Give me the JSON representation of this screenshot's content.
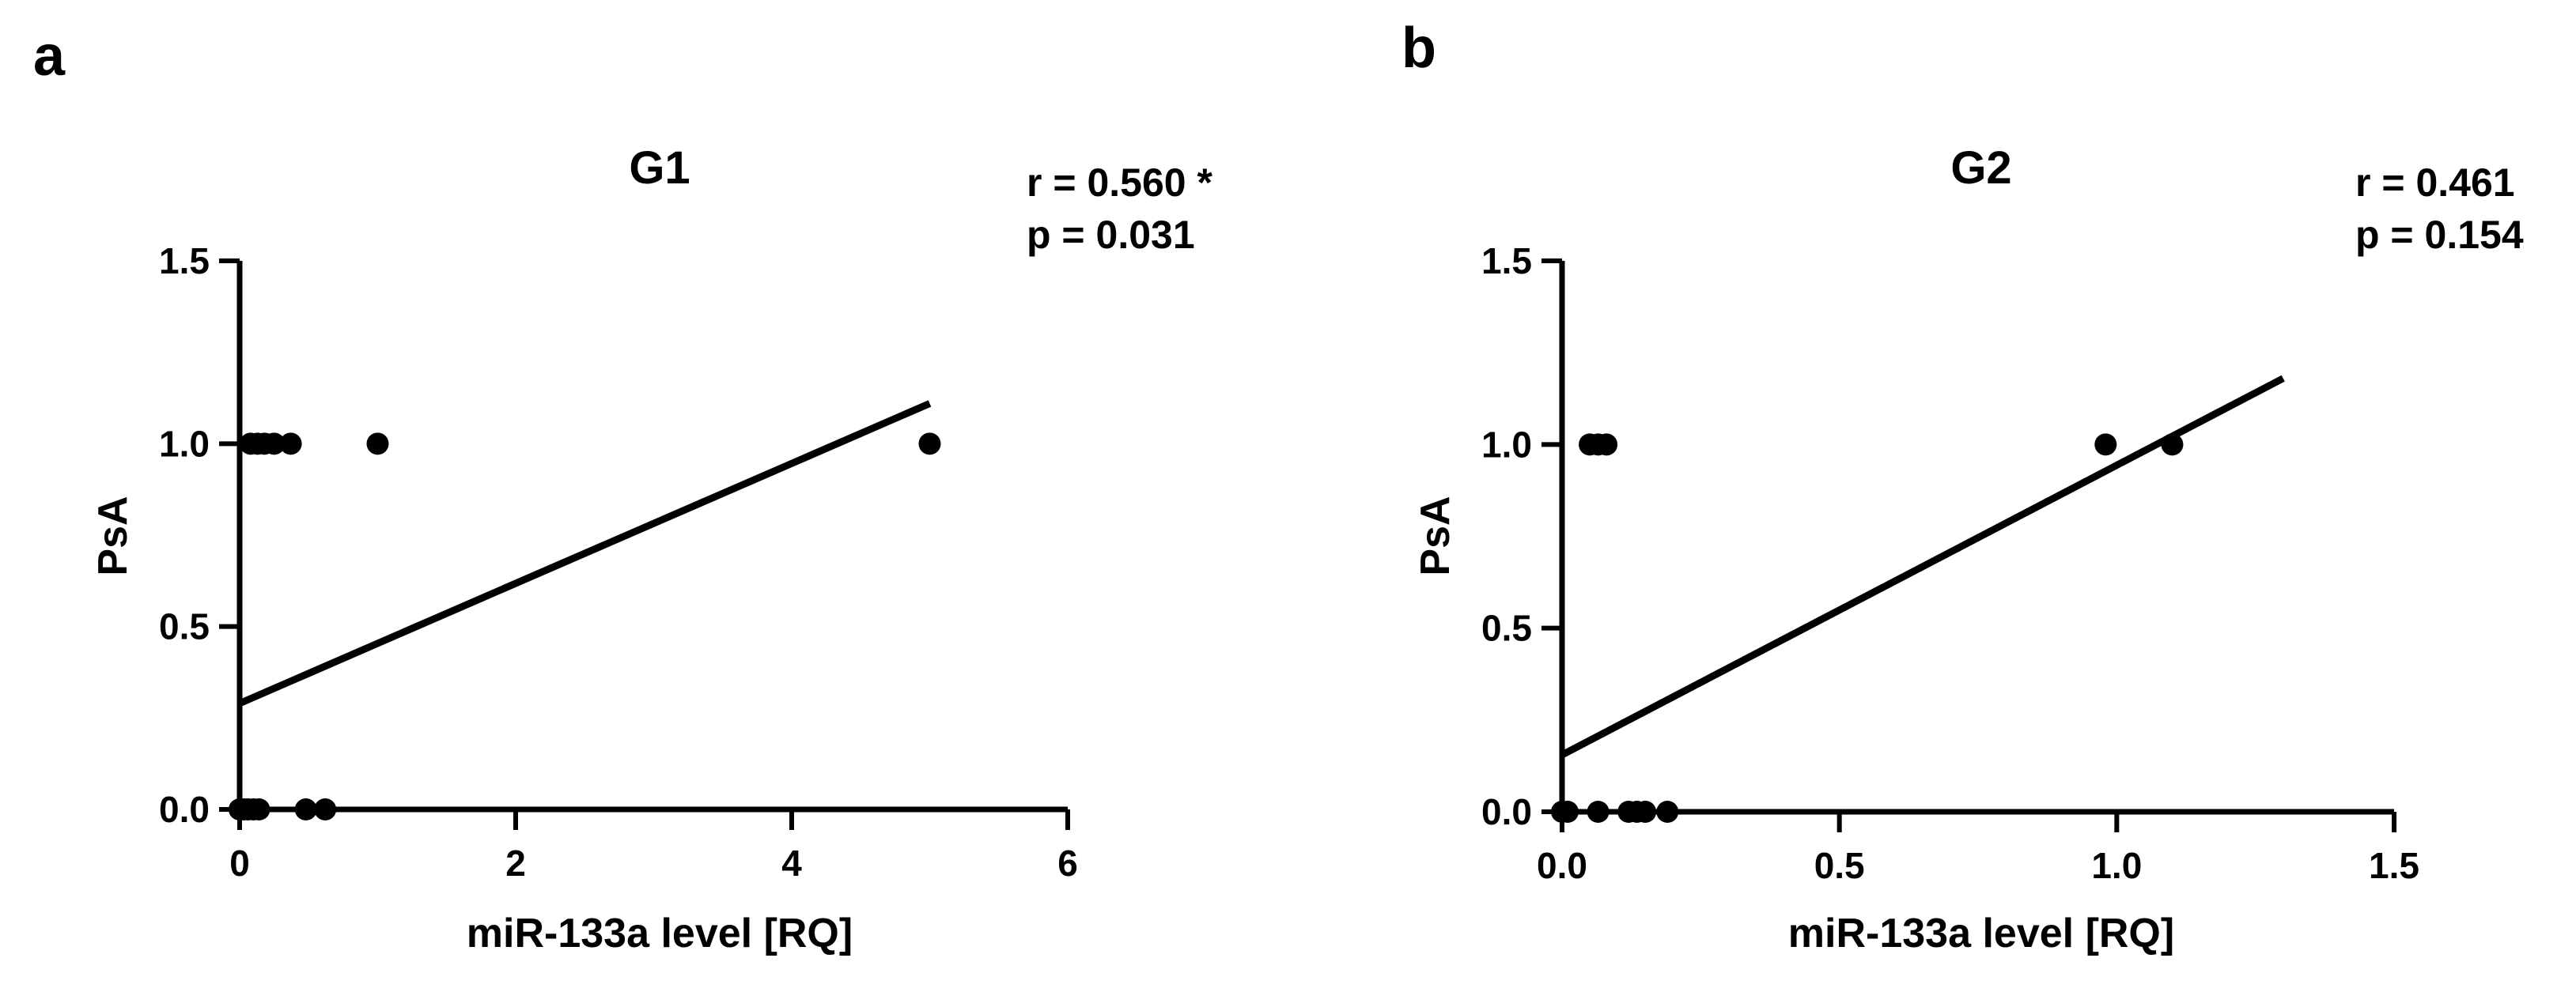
{
  "chart_data": [
    {
      "panel": "a",
      "type": "scatter",
      "title": "G1",
      "stats": [
        "r = 0.560 *",
        "p = 0.031"
      ],
      "xlabel": "miR-133a level [RQ]",
      "ylabel": "PsA",
      "xlim": [
        0,
        6
      ],
      "ylim": [
        0,
        1.5
      ],
      "xticks": [
        0,
        2,
        4,
        6
      ],
      "xtick_labels": [
        "0",
        "2",
        "4",
        "6"
      ],
      "yticks": [
        0,
        0.5,
        1.0,
        1.5
      ],
      "ytick_labels": [
        "0.0",
        "0.5",
        "1.0",
        "1.5"
      ],
      "points": [
        {
          "x": 0.08,
          "y": 1
        },
        {
          "x": 0.13,
          "y": 1
        },
        {
          "x": 0.18,
          "y": 1
        },
        {
          "x": 0.25,
          "y": 1
        },
        {
          "x": 0.37,
          "y": 1
        },
        {
          "x": 1.0,
          "y": 1
        },
        {
          "x": 5.0,
          "y": 1
        },
        {
          "x": 0.0,
          "y": 0
        },
        {
          "x": 0.03,
          "y": 0
        },
        {
          "x": 0.06,
          "y": 0
        },
        {
          "x": 0.1,
          "y": 0
        },
        {
          "x": 0.14,
          "y": 0
        },
        {
          "x": 0.48,
          "y": 0
        },
        {
          "x": 0.62,
          "y": 0
        }
      ],
      "fit": {
        "x": [
          0,
          5.0
        ],
        "y": [
          0.29,
          1.11
        ]
      }
    },
    {
      "panel": "b",
      "type": "scatter",
      "title": "G2",
      "stats": [
        "r = 0.461",
        "p = 0.154"
      ],
      "xlabel": "miR-133a level [RQ]",
      "ylabel": "PsA",
      "xlim": [
        0,
        1.5
      ],
      "ylim": [
        0,
        1.5
      ],
      "xticks": [
        0,
        0.5,
        1.0,
        1.5
      ],
      "xtick_labels": [
        "0.0",
        "0.5",
        "1.0",
        "1.5"
      ],
      "yticks": [
        0,
        0.5,
        1.0,
        1.5
      ],
      "ytick_labels": [
        "0.0",
        "0.5",
        "1.0",
        "1.5"
      ],
      "points": [
        {
          "x": 0.05,
          "y": 1
        },
        {
          "x": 0.065,
          "y": 1
        },
        {
          "x": 0.08,
          "y": 1
        },
        {
          "x": 0.98,
          "y": 1
        },
        {
          "x": 1.1,
          "y": 1
        },
        {
          "x": 0.0,
          "y": 0
        },
        {
          "x": 0.01,
          "y": 0
        },
        {
          "x": 0.065,
          "y": 0
        },
        {
          "x": 0.12,
          "y": 0
        },
        {
          "x": 0.135,
          "y": 0
        },
        {
          "x": 0.15,
          "y": 0
        },
        {
          "x": 0.19,
          "y": 0
        }
      ],
      "fit": {
        "x": [
          0,
          1.3
        ],
        "y": [
          0.155,
          1.18
        ]
      }
    }
  ]
}
